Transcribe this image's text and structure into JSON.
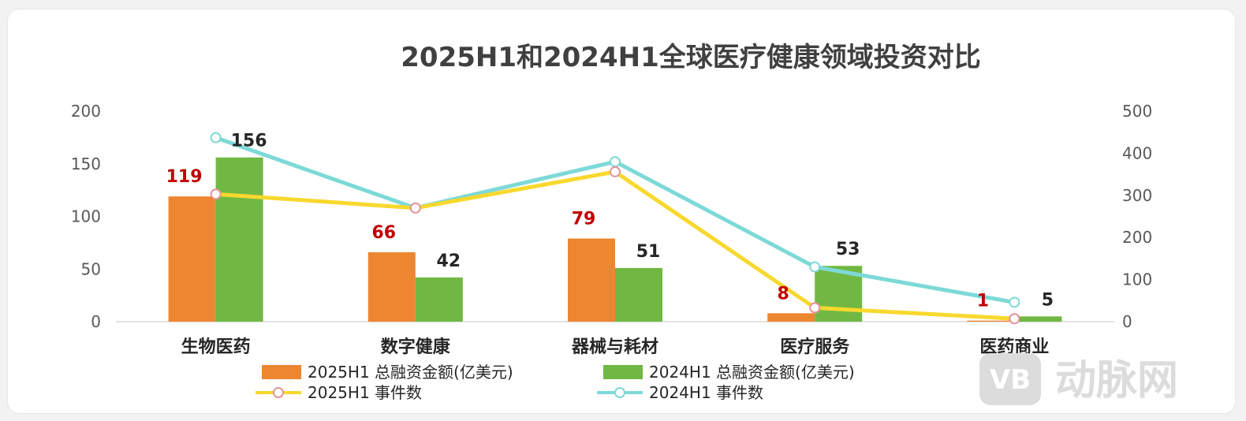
{
  "chart_data": {
    "type": "bar",
    "title": "2025H1和2024H1全球医疗健康领域投资对比",
    "categories": [
      "生物医药",
      "数字健康",
      "器械与耗材",
      "医疗服务",
      "医药商业"
    ],
    "y_left": {
      "ylim": [
        0,
        200
      ],
      "ticks": [
        "0",
        "50",
        "100",
        "150",
        "200"
      ]
    },
    "y_right": {
      "ylim": [
        0,
        500
      ],
      "ticks": [
        "0",
        "100",
        "200",
        "300",
        "400",
        "500"
      ]
    },
    "series": [
      {
        "name": "2025H1 总融资金额(亿美元)",
        "kind": "bar",
        "axis": "left",
        "color": "#ed8631",
        "label_color": "#c00000",
        "values": [
          119,
          66,
          79,
          8,
          1
        ],
        "labels": [
          "119",
          "66",
          "79",
          "8",
          "1"
        ]
      },
      {
        "name": "2024H1 总融资金额(亿美元)",
        "kind": "bar",
        "axis": "left",
        "color": "#70b843",
        "label_color": "#262626",
        "values": [
          156,
          42,
          51,
          53,
          5
        ],
        "labels": [
          "156",
          "42",
          "51",
          "53",
          "5"
        ]
      },
      {
        "name": "2025H1 事件数",
        "kind": "line",
        "axis": "right",
        "color": "#f7d82d",
        "marker_color": "#e7939b",
        "values": [
          303,
          270,
          356,
          33,
          7
        ]
      },
      {
        "name": "2024H1 事件数",
        "kind": "line",
        "axis": "right",
        "color": "#7dd9d7",
        "marker_color": "#7dd9d7",
        "values": [
          437,
          270,
          380,
          130,
          46
        ]
      }
    ],
    "grid": false,
    "legend": "bottom"
  },
  "watermark": {
    "logo_text": "VB",
    "text": "动脉网"
  }
}
